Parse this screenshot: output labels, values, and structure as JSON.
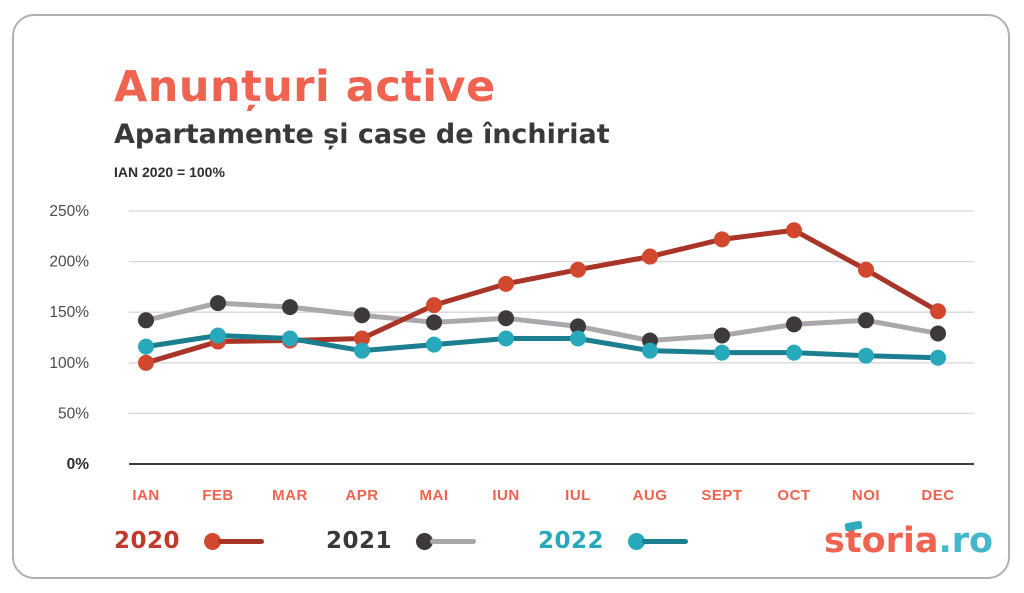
{
  "header": {
    "title": "Anunțuri active",
    "subtitle": "Apartamente și case de închiriat",
    "note": "IAN 2020 = 100%"
  },
  "chart_data": {
    "type": "line",
    "title": "Anunțuri active",
    "subtitle": "Apartamente și case de închiriat",
    "baseline_note": "IAN 2020 = 100%",
    "categories": [
      "IAN",
      "FEB",
      "MAR",
      "APR",
      "MAI",
      "IUN",
      "IUL",
      "AUG",
      "SEPT",
      "OCT",
      "NOI",
      "DEC"
    ],
    "series": [
      {
        "name": "2020",
        "values": [
          100,
          121,
          122,
          124,
          157,
          178,
          192,
          205,
          222,
          231,
          192,
          151
        ],
        "line_color": "#a93428",
        "dot_color": "#d2482f",
        "label_color": "#c0392b"
      },
      {
        "name": "2021",
        "values": [
          142,
          159,
          155,
          147,
          140,
          144,
          136,
          122,
          127,
          138,
          142,
          129
        ],
        "line_color": "#aba7ac",
        "dot_color": "#3d393c",
        "label_color": "#3a383b"
      },
      {
        "name": "2022",
        "values": [
          116,
          127,
          124,
          112,
          118,
          124,
          124,
          112,
          110,
          110,
          107,
          105
        ],
        "line_color": "#1b7f90",
        "dot_color": "#28a8bb",
        "label_color": "#28a8bb"
      }
    ],
    "ylim": [
      0,
      250
    ],
    "yticks": [
      0,
      50,
      100,
      150,
      200,
      250
    ],
    "ytick_suffix": "%",
    "grid": "horizontal",
    "legend_position": "bottom-left",
    "colors": {
      "axis_line": "#3f3d42",
      "gridline": "#d9d8da",
      "tick_label": "#4c4a4e",
      "month_label": "#f0624d"
    }
  },
  "logo": {
    "name_part": "storia",
    "tld_part": ".ro",
    "coral": "#ef6450",
    "teal": "#45b7cb"
  }
}
